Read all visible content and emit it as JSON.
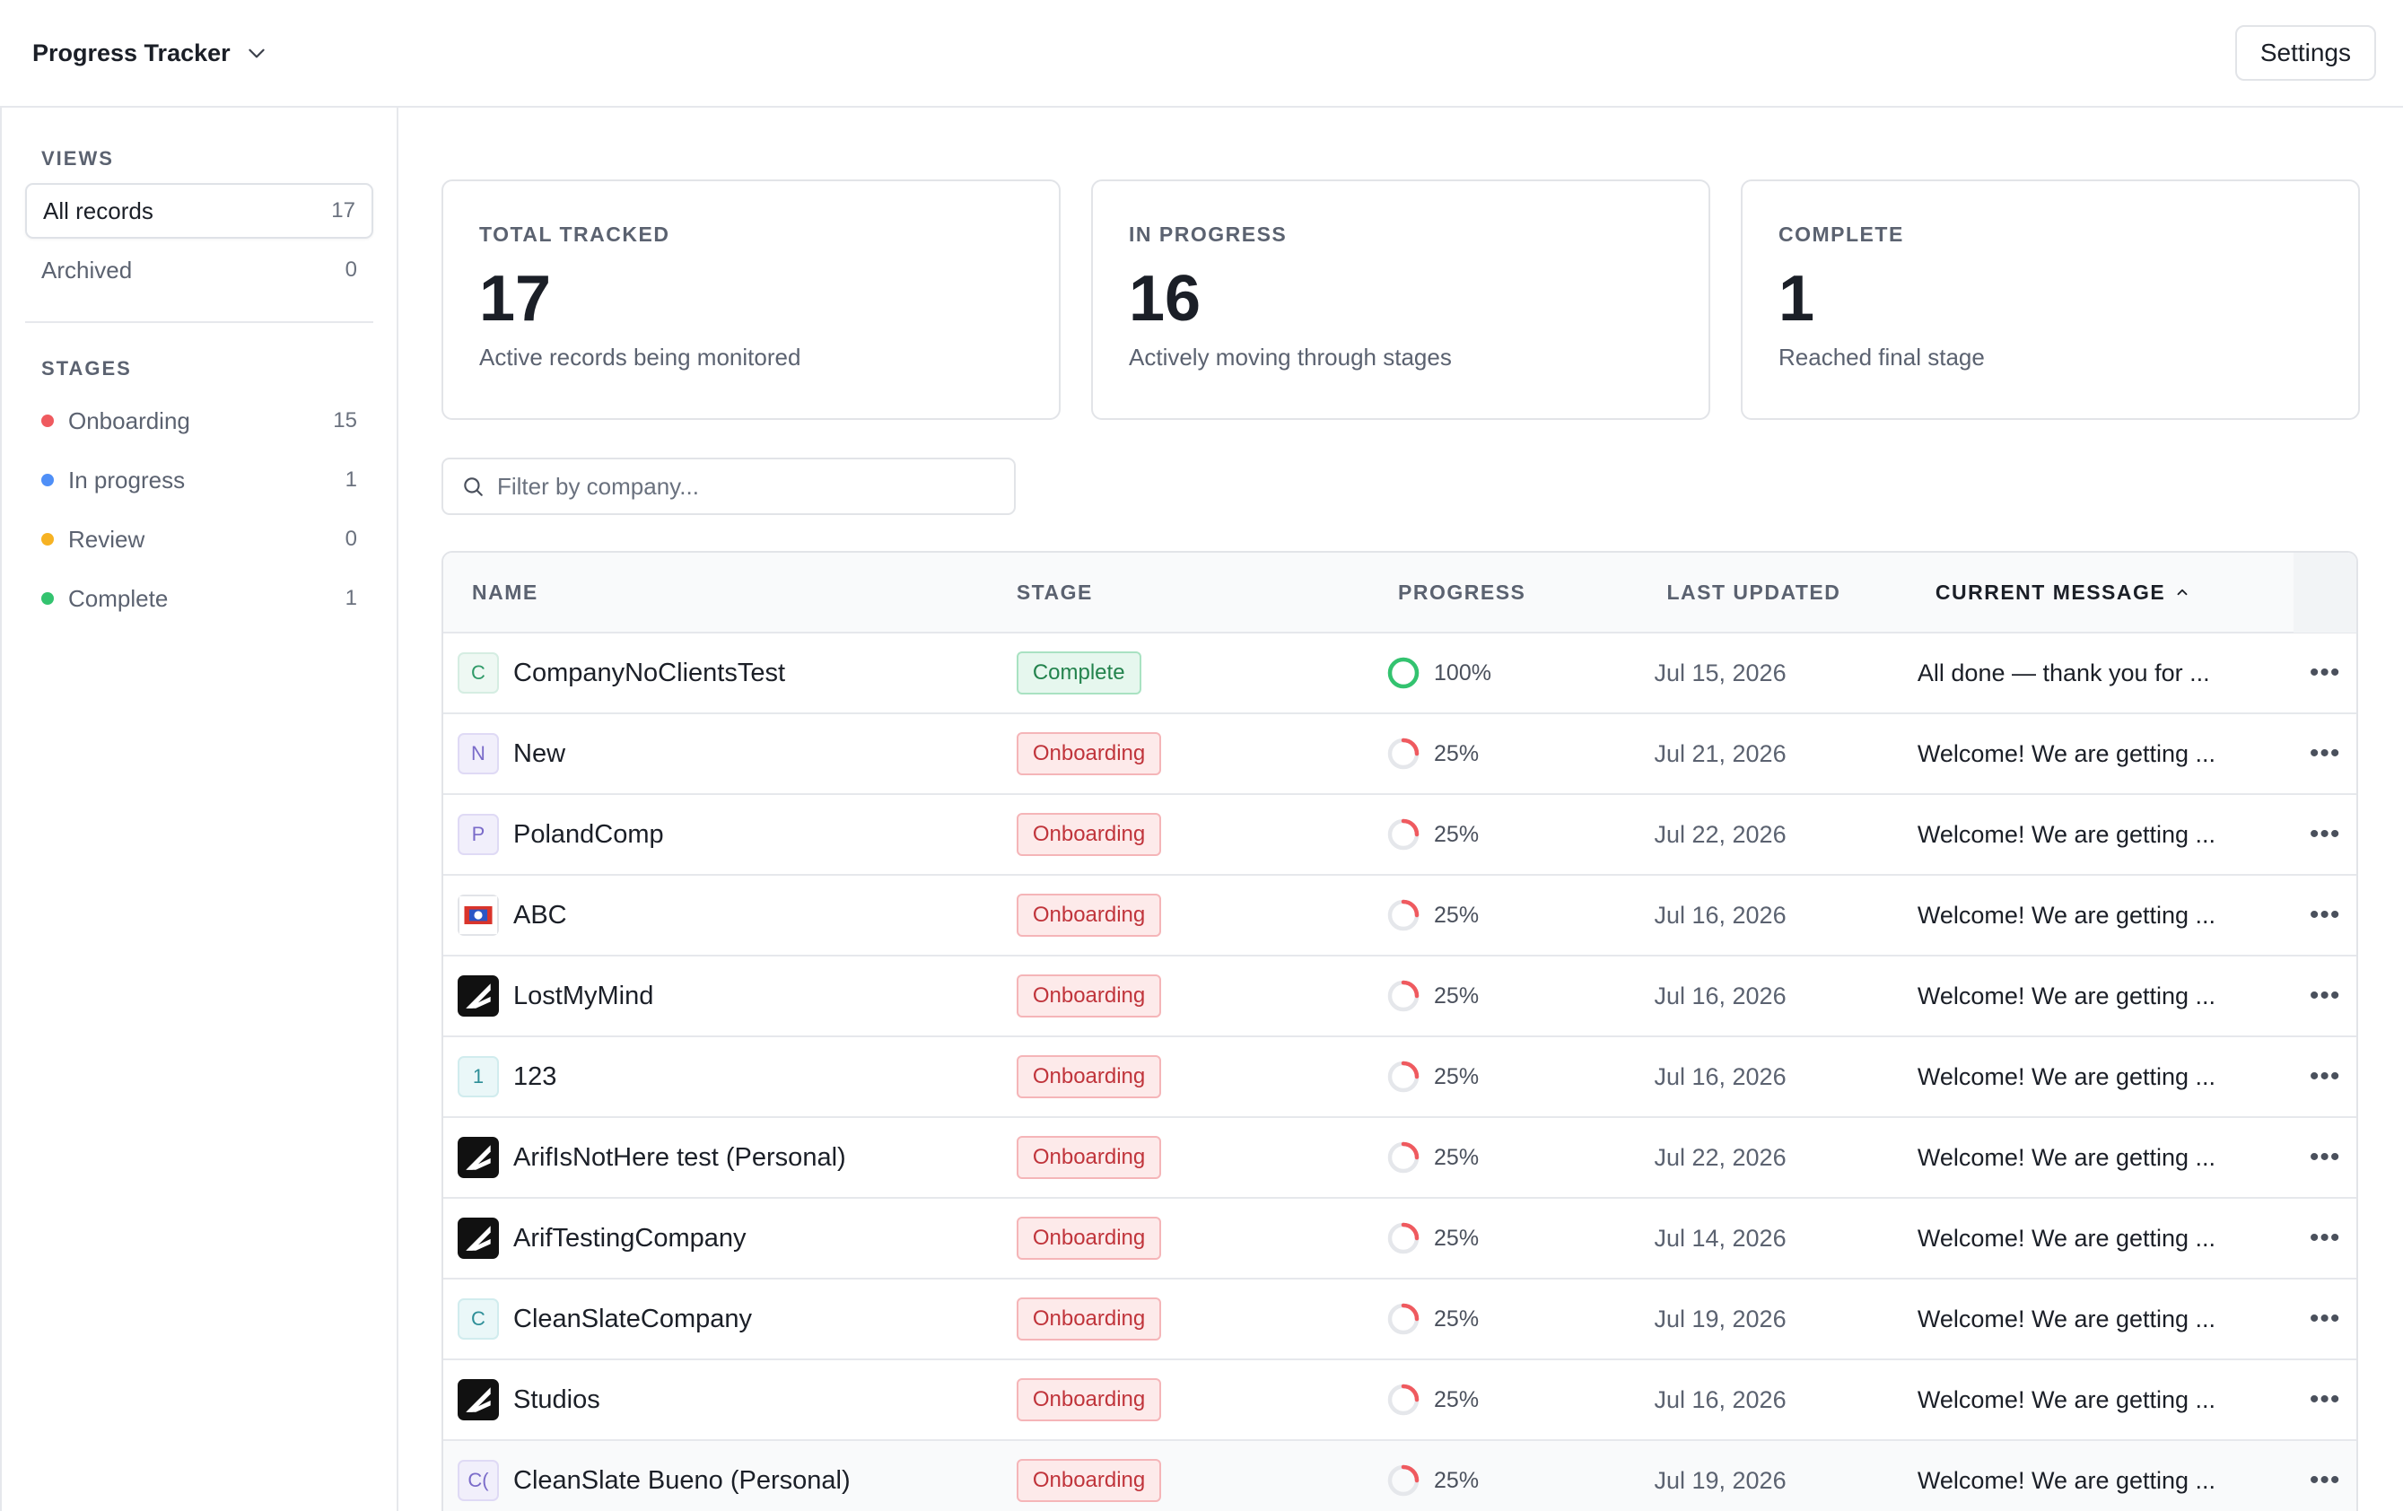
{
  "header": {
    "title": "Progress Tracker",
    "settings_label": "Settings"
  },
  "sidebar": {
    "views_heading": "VIEWS",
    "views": [
      {
        "label": "All records",
        "count": "17"
      },
      {
        "label": "Archived",
        "count": "0"
      }
    ],
    "stages_heading": "STAGES",
    "stages": [
      {
        "label": "Onboarding",
        "count": "15",
        "color": "#ef5a5f"
      },
      {
        "label": "In progress",
        "count": "1",
        "color": "#4f8ff7"
      },
      {
        "label": "Review",
        "count": "0",
        "color": "#f6b223"
      },
      {
        "label": "Complete",
        "count": "1",
        "color": "#33c36f"
      }
    ]
  },
  "cards": [
    {
      "label": "TOTAL TRACKED",
      "value": "17",
      "sub": "Active records being monitored"
    },
    {
      "label": "IN PROGRESS",
      "value": "16",
      "sub": "Actively moving through stages"
    },
    {
      "label": "COMPLETE",
      "value": "1",
      "sub": "Reached final stage"
    }
  ],
  "filter": {
    "placeholder": "Filter by company..."
  },
  "table": {
    "columns": {
      "name": "NAME",
      "stage": "STAGE",
      "progress": "PROGRESS",
      "updated": "LAST UPDATED",
      "message": "CURRENT MESSAGE"
    },
    "rows": [
      {
        "avatar": "C",
        "avatar_style": "green",
        "name": "CompanyNoClientsTest",
        "stage": "Complete",
        "progress": "100%",
        "progress_value": 1.0,
        "updated": "Jul 15, 2026",
        "message": "All done — thank you for ..."
      },
      {
        "avatar": "N",
        "avatar_style": "purple",
        "name": "New",
        "stage": "Onboarding",
        "progress": "25%",
        "progress_value": 0.25,
        "updated": "Jul 21, 2026",
        "message": "Welcome! We are getting ..."
      },
      {
        "avatar": "P",
        "avatar_style": "purple",
        "name": "PolandComp",
        "stage": "Onboarding",
        "progress": "25%",
        "progress_value": 0.25,
        "updated": "Jul 22, 2026",
        "message": "Welcome! We are getting ..."
      },
      {
        "avatar": "",
        "avatar_style": "flag",
        "name": "ABC",
        "stage": "Onboarding",
        "progress": "25%",
        "progress_value": 0.25,
        "updated": "Jul 16, 2026",
        "message": "Welcome! We are getting ..."
      },
      {
        "avatar": "",
        "avatar_style": "logo",
        "name": "LostMyMind",
        "stage": "Onboarding",
        "progress": "25%",
        "progress_value": 0.25,
        "updated": "Jul 16, 2026",
        "message": "Welcome! We are getting ..."
      },
      {
        "avatar": "1",
        "avatar_style": "teal",
        "name": "123",
        "stage": "Onboarding",
        "progress": "25%",
        "progress_value": 0.25,
        "updated": "Jul 16, 2026",
        "message": "Welcome! We are getting ..."
      },
      {
        "avatar": "",
        "avatar_style": "logo",
        "name": "ArifIsNotHere test (Personal)",
        "stage": "Onboarding",
        "progress": "25%",
        "progress_value": 0.25,
        "updated": "Jul 22, 2026",
        "message": "Welcome! We are getting ..."
      },
      {
        "avatar": "",
        "avatar_style": "logo",
        "name": "ArifTestingCompany",
        "stage": "Onboarding",
        "progress": "25%",
        "progress_value": 0.25,
        "updated": "Jul 14, 2026",
        "message": "Welcome! We are getting ..."
      },
      {
        "avatar": "C",
        "avatar_style": "teal",
        "name": "CleanSlateCompany",
        "stage": "Onboarding",
        "progress": "25%",
        "progress_value": 0.25,
        "updated": "Jul 19, 2026",
        "message": "Welcome! We are getting ..."
      },
      {
        "avatar": "",
        "avatar_style": "logo",
        "name": "Studios",
        "stage": "Onboarding",
        "progress": "25%",
        "progress_value": 0.25,
        "updated": "Jul 16, 2026",
        "message": "Welcome! We are getting ..."
      },
      {
        "avatar": "C(",
        "avatar_style": "purple",
        "name": "CleanSlate Bueno (Personal)",
        "stage": "Onboarding",
        "progress": "25%",
        "progress_value": 0.25,
        "updated": "Jul 19, 2026",
        "message": "Welcome! We are getting ..."
      }
    ]
  },
  "icons": {
    "app_switch": "chevron-down-icon",
    "filter": "search-icon",
    "sort": "chevron-up-icon",
    "row_action": "more-horizontal-icon"
  },
  "colors": {
    "onboarding": "#ef5a5f",
    "complete": "#33c36f",
    "ring_track": "#e5e7eb"
  }
}
